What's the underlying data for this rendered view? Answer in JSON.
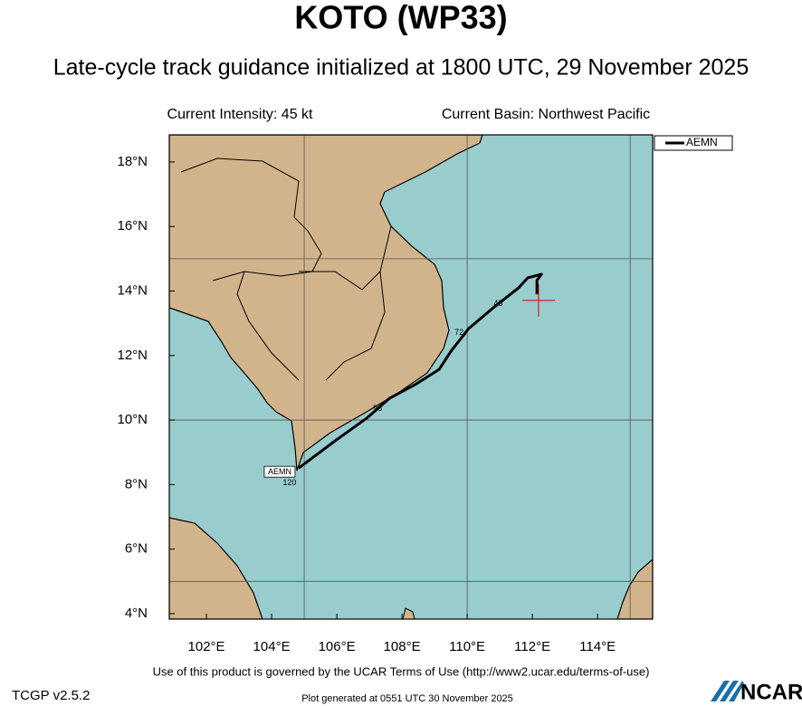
{
  "chart_data": {
    "type": "track",
    "title": "KOTO (WP33)",
    "subtitle": "Late-cycle track guidance initialized at 1800 UTC, 29 November 2025",
    "intensity": "Current Intensity: 45 kt",
    "basin": "Current Basin: Northwest Pacific",
    "xlim": [
      100.86,
      115.69
    ],
    "ylim": [
      3.83,
      18.84
    ],
    "xticks": [
      {
        "value": 102,
        "label": "102°E"
      },
      {
        "value": 104,
        "label": "104°E"
      },
      {
        "value": 106,
        "label": "106°E"
      },
      {
        "value": 108,
        "label": "108°E"
      },
      {
        "value": 110,
        "label": "110°E"
      },
      {
        "value": 112,
        "label": "112°E"
      },
      {
        "value": 114,
        "label": "114°E"
      }
    ],
    "yticks": [
      {
        "value": 4,
        "label": "4°N"
      },
      {
        "value": 6,
        "label": "6°N"
      },
      {
        "value": 8,
        "label": "8°N"
      },
      {
        "value": 10,
        "label": "10°N"
      },
      {
        "value": 12,
        "label": "12°N"
      },
      {
        "value": 14,
        "label": "14°N"
      },
      {
        "value": 16,
        "label": "16°N"
      },
      {
        "value": 18,
        "label": "18°N"
      }
    ],
    "grid_lon": [
      105,
      110,
      115
    ],
    "grid_lat": [
      5,
      10,
      15
    ],
    "grid": true,
    "legend": "upper right",
    "storm": {
      "lon": 112.19,
      "lat": 13.71,
      "color": "#d62020"
    },
    "series": [
      {
        "name": "AEMN",
        "color": "#000000",
        "lon": [
          112.14,
          112.14,
          112.28,
          111.86,
          111.58,
          110.8,
          110.05,
          109.5,
          109.14,
          108.44,
          107.61,
          106.92,
          105.94,
          104.83
        ],
        "lat": [
          13.9,
          14.33,
          14.52,
          14.41,
          14.1,
          13.48,
          12.84,
          12.13,
          11.57,
          11.12,
          10.67,
          10.06,
          9.35,
          8.51
        ],
        "hour_labels": [
          {
            "hour": 48,
            "lon": 110.95,
            "lat": 13.6
          },
          {
            "hour": 72,
            "lon": 109.75,
            "lat": 12.7
          },
          {
            "hour": 96,
            "lon": 107.25,
            "lat": 10.35
          },
          {
            "hour": 120,
            "lon": 104.55,
            "lat": 8.05
          }
        ]
      }
    ]
  },
  "footer": {
    "terms": "Use of this product is governed by the UCAR Terms of Use (http://www2.ucar.edu/terms-of-use)",
    "version": "TCGP v2.5.2",
    "generated": "Plot generated at 0551 UTC   30 November 2025",
    "logo": "NCAR"
  }
}
